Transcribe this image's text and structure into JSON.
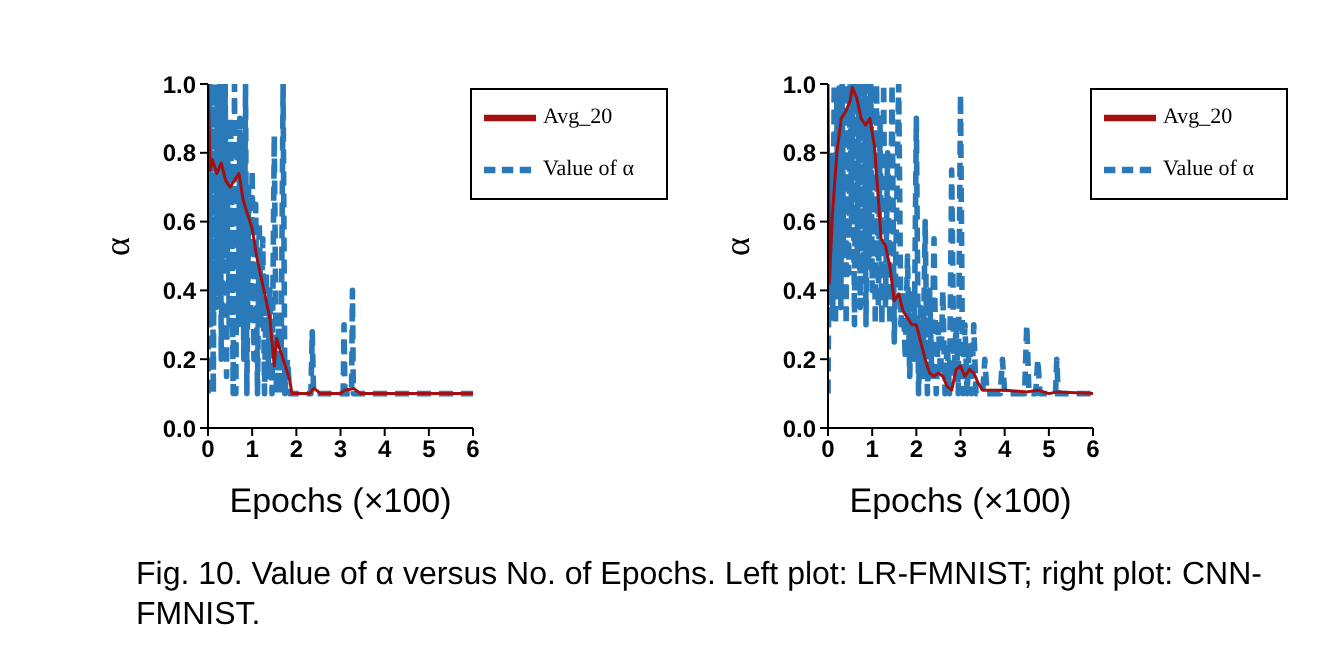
{
  "chart_data": [
    {
      "type": "line",
      "xlabel": "Epochs (×100)",
      "ylabel": "α",
      "xlim": [
        0,
        6
      ],
      "xticks": [
        0,
        1,
        2,
        3,
        4,
        5,
        6
      ],
      "ylim": [
        0,
        1
      ],
      "yticks": [
        {
          "value": 0,
          "label": "0.0"
        },
        {
          "value": 0.2,
          "label": "0.2"
        },
        {
          "value": 0.4,
          "label": "0.4"
        },
        {
          "value": 0.6,
          "label": "0.6"
        },
        {
          "value": 0.8,
          "label": "0.8"
        },
        {
          "value": 1,
          "label": "1.0"
        }
      ],
      "legend": "top right",
      "grid": false,
      "annotations": [
        "Fig. 10. Value of α versus No. of Epochs. Left plot: LR-FMNIST; right plot: CNN-FMNIST."
      ],
      "series": [
        {
          "name": "Value of α",
          "color": "#2a7ab9",
          "line_style": "dashed",
          "x": [
            0,
            0.03,
            0.06,
            0.09,
            0.12,
            0.15,
            0.18,
            0.21,
            0.24,
            0.27,
            0.3,
            0.33,
            0.36,
            0.39,
            0.42,
            0.45,
            0.48,
            0.51,
            0.54,
            0.57,
            0.6,
            0.63,
            0.66,
            0.69,
            0.72,
            0.75,
            0.78,
            0.81,
            0.85,
            0.88,
            0.92,
            0.96,
            1.0,
            1.04,
            1.08,
            1.12,
            1.16,
            1.2,
            1.24,
            1.28,
            1.32,
            1.36,
            1.4,
            1.45,
            1.5,
            1.55,
            1.6,
            1.65,
            1.7,
            1.74,
            1.8,
            1.85,
            2.33,
            2.36,
            2.39,
            3.06,
            3.08,
            3.1,
            3.25,
            3.27,
            3.29,
            6
          ],
          "values": [
            0.1,
            1.0,
            0.3,
            0.9,
            0.1,
            1.0,
            0.35,
            0.95,
            0.4,
            1.0,
            0.2,
            0.9,
            0.5,
            1.0,
            0.15,
            0.8,
            0.3,
            0.9,
            0.6,
            0.1,
            1.0,
            0.1,
            0.8,
            0.3,
            0.9,
            0.4,
            0.85,
            0.2,
            1.0,
            0.1,
            0.7,
            0.3,
            0.75,
            0.2,
            0.65,
            0.1,
            0.6,
            0.3,
            0.55,
            0.1,
            0.45,
            0.15,
            0.4,
            0.1,
            0.85,
            0.1,
            0.3,
            0.1,
            1.0,
            0.1,
            0.2,
            0.1,
            0.1,
            0.28,
            0.1,
            0.1,
            0.3,
            0.1,
            0.1,
            0.4,
            0.1,
            0.1
          ]
        },
        {
          "name": "Avg_20",
          "color": "#a50f0f",
          "line_style": "solid",
          "x": [
            0,
            0.05,
            0.1,
            0.2,
            0.3,
            0.4,
            0.5,
            0.6,
            0.7,
            0.8,
            0.9,
            1.0,
            1.1,
            1.2,
            1.3,
            1.4,
            1.5,
            1.55,
            1.65,
            1.75,
            1.85,
            1.9,
            2.3,
            2.4,
            2.55,
            3.0,
            3.1,
            3.3,
            3.45,
            6
          ],
          "values": [
            1.0,
            0.75,
            0.78,
            0.74,
            0.77,
            0.72,
            0.7,
            0.72,
            0.74,
            0.66,
            0.62,
            0.58,
            0.5,
            0.44,
            0.38,
            0.32,
            0.18,
            0.26,
            0.22,
            0.18,
            0.14,
            0.1,
            0.1,
            0.115,
            0.1,
            0.1,
            0.11,
            0.115,
            0.1,
            0.1
          ]
        }
      ]
    },
    {
      "type": "line",
      "xlabel": "Epochs (×100)",
      "ylabel": "α",
      "xlim": [
        0,
        6
      ],
      "xticks": [
        0,
        1,
        2,
        3,
        4,
        5,
        6
      ],
      "ylim": [
        0,
        1
      ],
      "yticks": [
        {
          "value": 0,
          "label": "0.0"
        },
        {
          "value": 0.2,
          "label": "0.2"
        },
        {
          "value": 0.4,
          "label": "0.4"
        },
        {
          "value": 0.6,
          "label": "0.6"
        },
        {
          "value": 0.8,
          "label": "0.8"
        },
        {
          "value": 1,
          "label": "1.0"
        }
      ],
      "legend": "top right",
      "grid": false,
      "series": [
        {
          "name": "Value of α",
          "color": "#2a7ab9",
          "line_style": "dashed",
          "x": [
            0,
            0.02,
            0.05,
            0.08,
            0.11,
            0.14,
            0.17,
            0.2,
            0.23,
            0.26,
            0.29,
            0.32,
            0.35,
            0.38,
            0.41,
            0.44,
            0.47,
            0.5,
            0.53,
            0.56,
            0.6,
            0.63,
            0.66,
            0.7,
            0.73,
            0.76,
            0.8,
            0.83,
            0.86,
            0.9,
            0.93,
            0.97,
            1.0,
            1.03,
            1.07,
            1.1,
            1.14,
            1.18,
            1.22,
            1.26,
            1.3,
            1.35,
            1.4,
            1.45,
            1.5,
            1.55,
            1.6,
            1.65,
            1.7,
            1.75,
            1.8,
            1.85,
            1.9,
            1.95,
            2.0,
            2.05,
            2.1,
            2.15,
            2.2,
            2.25,
            2.3,
            2.35,
            2.4,
            2.45,
            2.5,
            2.55,
            2.6,
            2.65,
            2.7,
            2.75,
            2.8,
            2.85,
            2.9,
            2.95,
            3.0,
            3.05,
            3.1,
            3.15,
            3.2,
            3.25,
            3.3,
            3.35,
            3.5,
            3.55,
            3.6,
            3.9,
            3.95,
            4.0,
            4.45,
            4.5,
            4.55,
            4.7,
            4.75,
            4.8,
            5.15,
            5.18,
            5.21,
            6
          ],
          "values": [
            0.1,
            0.45,
            0.3,
            0.8,
            0.35,
            1.0,
            0.3,
            0.95,
            0.4,
            1.0,
            0.35,
            1.0,
            0.5,
            1.0,
            0.3,
            1.0,
            0.45,
            1.0,
            0.6,
            1.0,
            0.3,
            1.0,
            0.5,
            1.0,
            0.35,
            1.0,
            0.45,
            1.0,
            0.3,
            1.0,
            0.5,
            1.0,
            0.4,
            1.0,
            0.3,
            1.0,
            0.35,
            0.9,
            0.3,
            1.0,
            0.35,
            0.8,
            0.3,
            1.0,
            0.25,
            0.6,
            1.0,
            0.3,
            0.4,
            0.2,
            0.5,
            0.15,
            0.4,
            0.2,
            0.9,
            0.1,
            0.35,
            0.15,
            0.6,
            0.1,
            0.4,
            0.15,
            0.55,
            0.1,
            0.3,
            0.15,
            0.4,
            0.1,
            0.25,
            0.1,
            0.75,
            0.15,
            0.3,
            0.1,
            0.97,
            0.1,
            0.3,
            0.1,
            0.25,
            0.1,
            0.3,
            0.1,
            0.1,
            0.2,
            0.1,
            0.1,
            0.2,
            0.1,
            0.1,
            0.3,
            0.1,
            0.1,
            0.2,
            0.1,
            0.1,
            0.2,
            0.1,
            0.1
          ]
        },
        {
          "name": "Avg_20",
          "color": "#a50f0f",
          "line_style": "solid",
          "x": [
            0,
            0.03,
            0.1,
            0.2,
            0.3,
            0.4,
            0.5,
            0.55,
            0.65,
            0.75,
            0.85,
            0.95,
            1.05,
            1.15,
            1.2,
            1.3,
            1.4,
            1.5,
            1.6,
            1.7,
            1.8,
            1.9,
            2.0,
            2.1,
            2.2,
            2.3,
            2.4,
            2.5,
            2.6,
            2.7,
            2.8,
            2.9,
            3.0,
            3.1,
            3.2,
            3.3,
            3.4,
            3.5,
            4.0,
            4.5,
            4.75,
            5.0,
            5.2,
            6
          ],
          "values": [
            1.0,
            0.42,
            0.62,
            0.8,
            0.9,
            0.92,
            0.95,
            0.99,
            0.96,
            0.9,
            0.88,
            0.9,
            0.82,
            0.65,
            0.55,
            0.53,
            0.47,
            0.37,
            0.39,
            0.34,
            0.32,
            0.3,
            0.3,
            0.25,
            0.2,
            0.16,
            0.15,
            0.16,
            0.15,
            0.12,
            0.11,
            0.17,
            0.18,
            0.15,
            0.17,
            0.16,
            0.13,
            0.11,
            0.11,
            0.105,
            0.11,
            0.1,
            0.105,
            0.1
          ]
        }
      ]
    }
  ]
}
